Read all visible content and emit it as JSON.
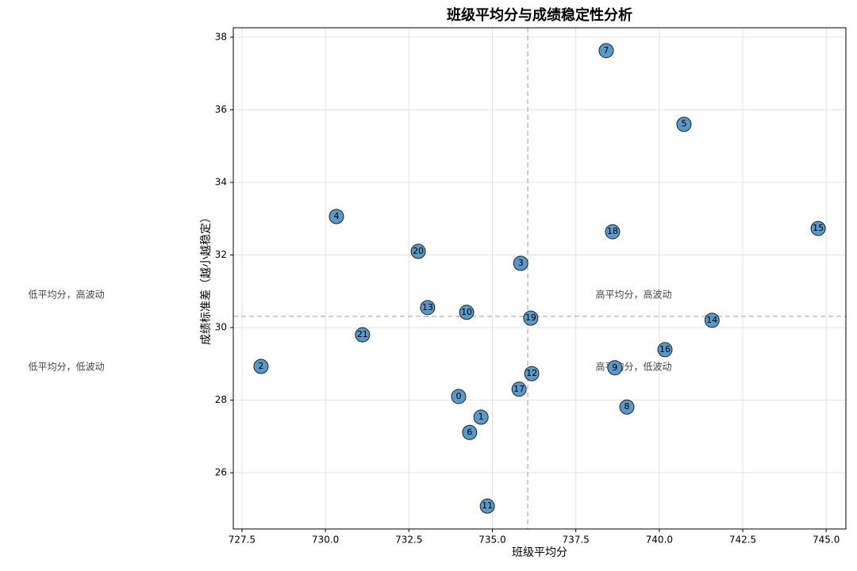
{
  "chart_data": {
    "type": "scatter",
    "title": "班级平均分与成绩稳定性分析",
    "x_label": "班级平均分",
    "y_label": "成绩标准差（越小越稳定）",
    "x": [
      733.99,
      734.66,
      728.07,
      735.85,
      730.33,
      740.74,
      734.32,
      738.41,
      739.03,
      738.67,
      734.23,
      734.85,
      736.18,
      733.06,
      741.58,
      744.76,
      740.17,
      735.8,
      738.6,
      736.15,
      732.78,
      731.11
    ],
    "values": [
      28.1,
      27.53,
      28.93,
      31.77,
      33.06,
      35.6,
      27.11,
      37.63,
      27.81,
      28.89,
      30.42,
      25.08,
      28.73,
      30.55,
      30.2,
      32.73,
      29.39,
      28.3,
      32.64,
      30.26,
      32.1,
      29.8
    ],
    "point_labels": [
      "0",
      "1",
      "2",
      "3",
      "4",
      "5",
      "6",
      "7",
      "8",
      "9",
      "10",
      "11",
      "12",
      "13",
      "14",
      "15",
      "16",
      "17",
      "18",
      "19",
      "20",
      "21"
    ],
    "color": "#5899c9",
    "reference_lines": {
      "x": 736.06,
      "y": 30.31
    },
    "annotations": [
      {
        "text": "低平均分，高波动",
        "x": 721.1,
        "y": 30.9
      },
      {
        "text": "低平均分，低波动",
        "x": 721.1,
        "y": 28.91
      },
      {
        "text": "高平均分，高波动",
        "x": 738.09,
        "y": 30.9
      },
      {
        "text": "高平均分，低波动",
        "x": 738.09,
        "y": 28.91
      }
    ],
    "xlim": [
      727.24,
      745.59
    ],
    "ylim": [
      24.45,
      38.26
    ],
    "xticks": [
      727.5,
      {
        "value": 730,
        "label": "730.0"
      },
      732.5,
      {
        "value": 735,
        "label": "735.0"
      },
      737.5,
      {
        "value": 740,
        "label": "740.0"
      },
      742.5,
      {
        "value": 745,
        "label": "745.0"
      }
    ],
    "yticks": [
      26,
      28,
      30,
      32,
      34,
      36,
      38
    ],
    "grid": true
  }
}
